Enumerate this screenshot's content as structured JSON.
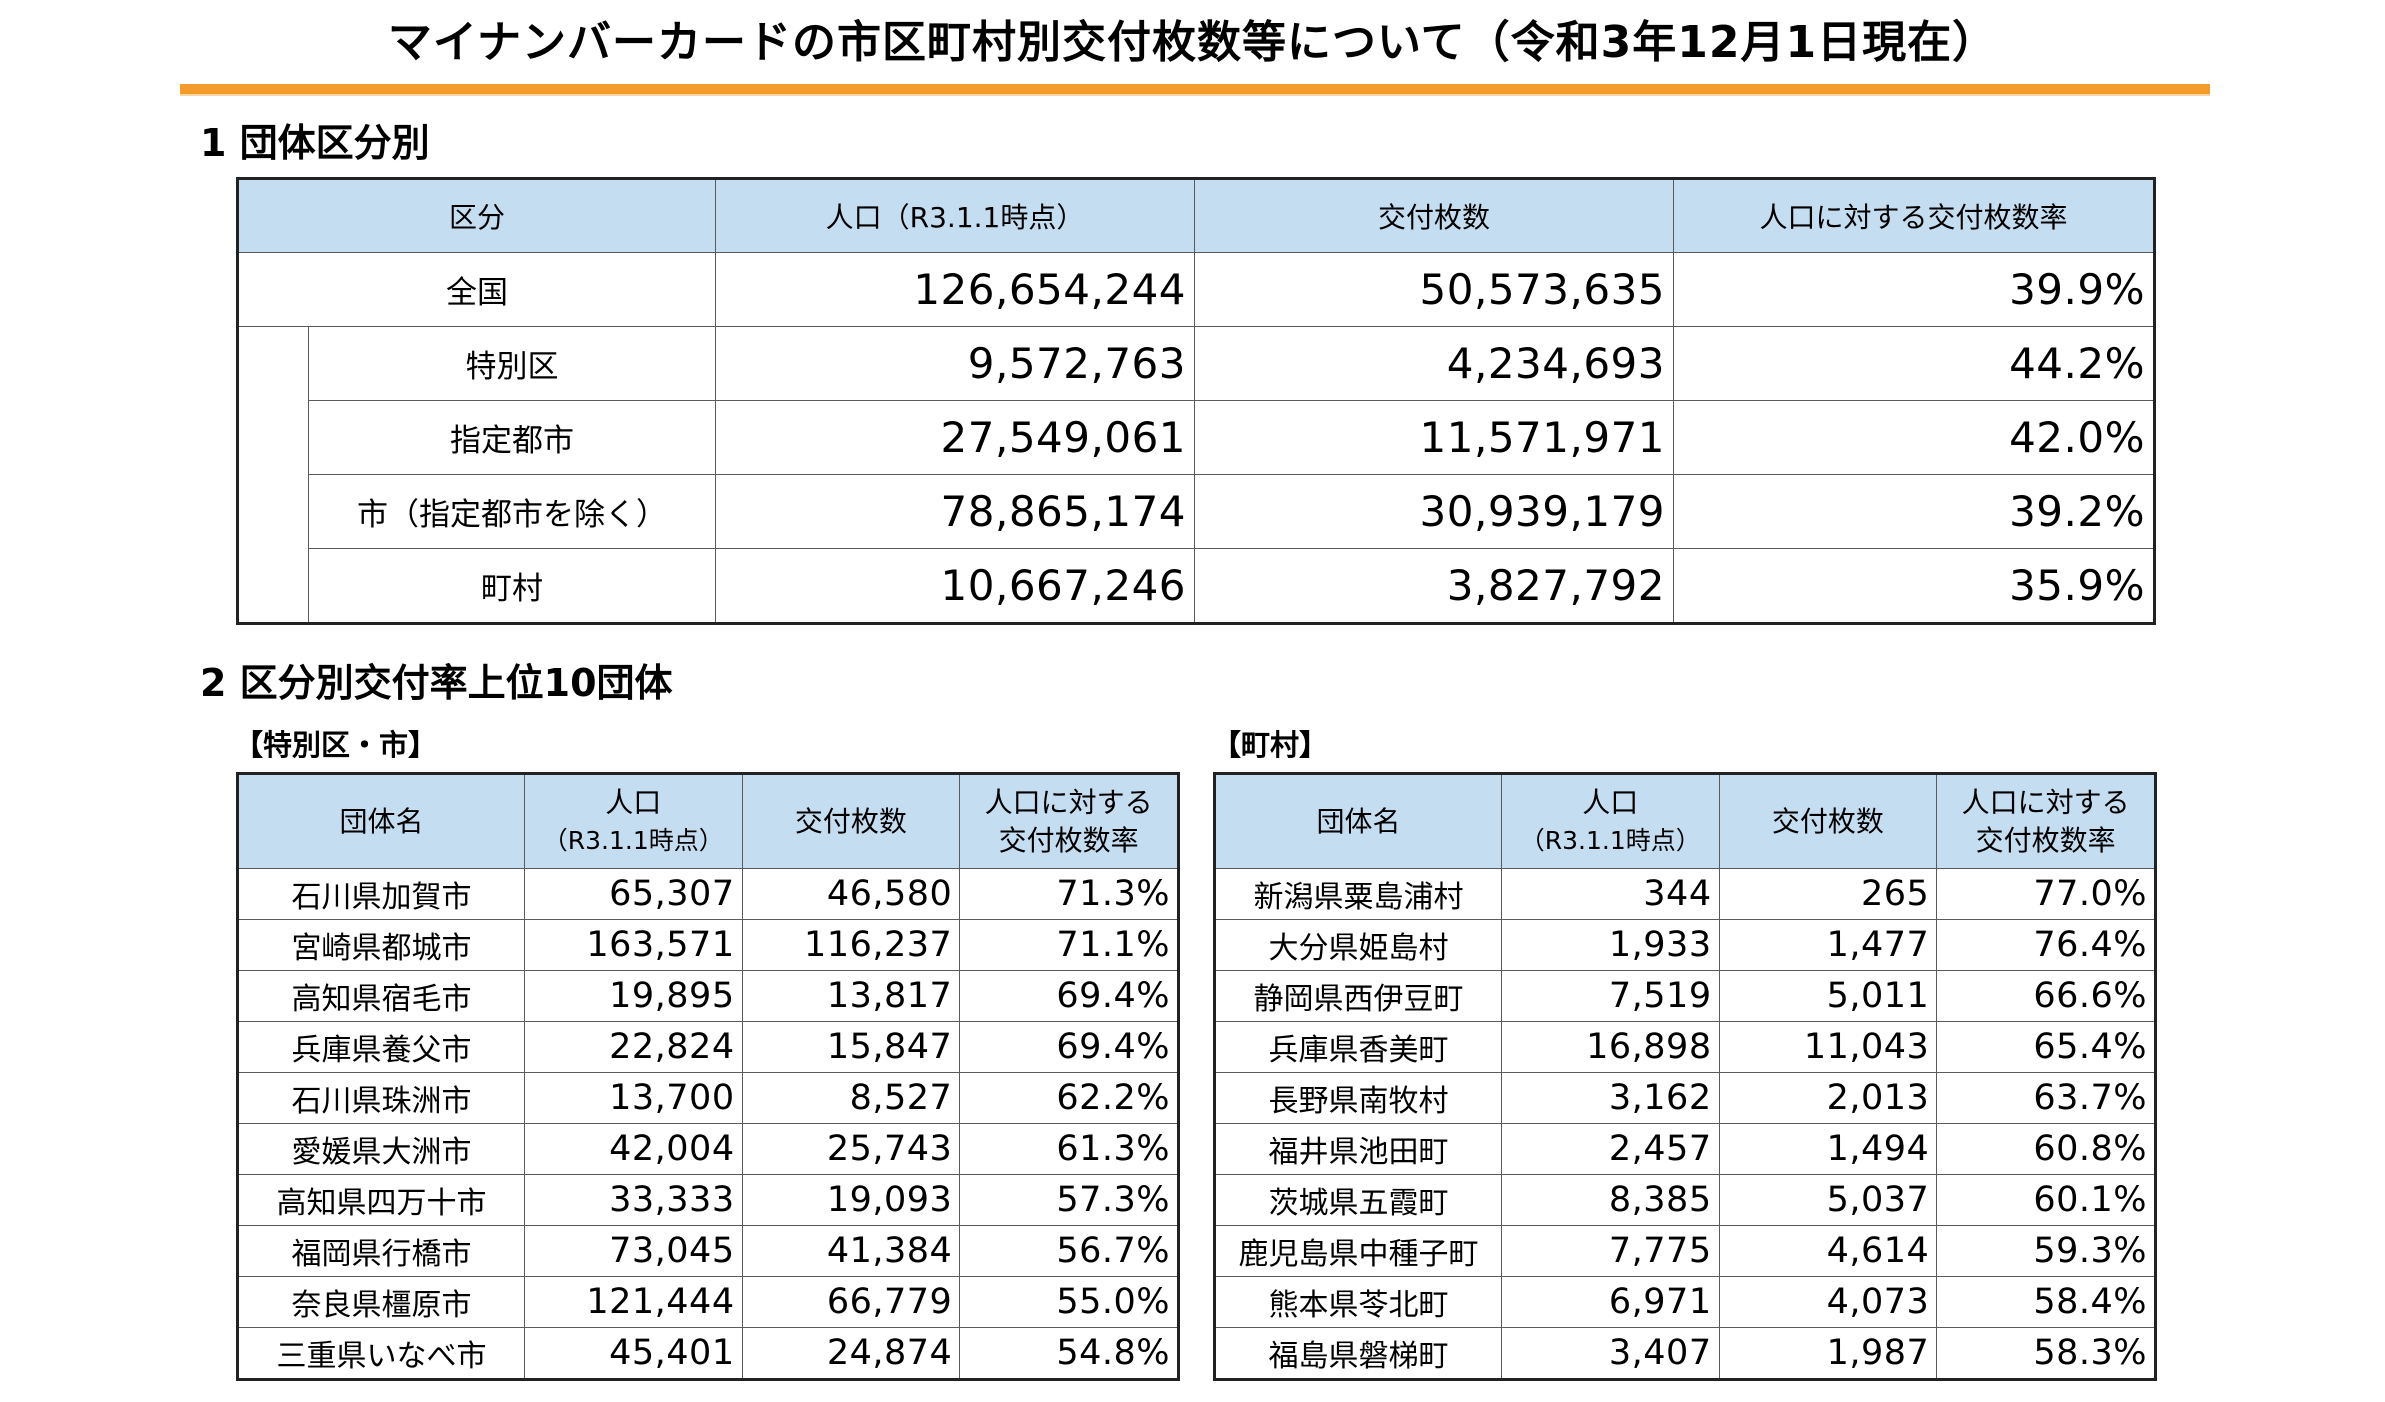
{
  "title": "マイナンバーカードの市区町村別交付枚数等について（令和3年12月1日現在）",
  "section1": {
    "heading": "1 団体区分別",
    "headers": [
      "区分",
      "人口（R3.1.1時点）",
      "交付枚数",
      "人口に対する交付枚数率"
    ],
    "rows": [
      {
        "label": "全国",
        "population": "126,654,244",
        "issued": "50,573,635",
        "rate": "39.9%"
      },
      {
        "label": "特別区",
        "population": "9,572,763",
        "issued": "4,234,693",
        "rate": "44.2%"
      },
      {
        "label": "指定都市",
        "population": "27,549,061",
        "issued": "11,571,971",
        "rate": "42.0%"
      },
      {
        "label": "市（指定都市を除く）",
        "population": "78,865,174",
        "issued": "30,939,179",
        "rate": "39.2%"
      },
      {
        "label": "町村",
        "population": "10,667,246",
        "issued": "3,827,792",
        "rate": "35.9%"
      }
    ]
  },
  "section2": {
    "heading": "2 区分別交付率上位10団体",
    "cities": {
      "subheading": "【特別区・市】",
      "headers": {
        "name": "団体名",
        "population_1": "人口",
        "population_2": "（R3.1.1時点）",
        "issued": "交付枚数",
        "rate_1": "人口に対する",
        "rate_2": "交付枚数率"
      },
      "rows": [
        {
          "name": "石川県加賀市",
          "population": "65,307",
          "issued": "46,580",
          "rate": "71.3%"
        },
        {
          "name": "宮崎県都城市",
          "population": "163,571",
          "issued": "116,237",
          "rate": "71.1%"
        },
        {
          "name": "高知県宿毛市",
          "population": "19,895",
          "issued": "13,817",
          "rate": "69.4%"
        },
        {
          "name": "兵庫県養父市",
          "population": "22,824",
          "issued": "15,847",
          "rate": "69.4%"
        },
        {
          "name": "石川県珠洲市",
          "population": "13,700",
          "issued": "8,527",
          "rate": "62.2%"
        },
        {
          "name": "愛媛県大洲市",
          "population": "42,004",
          "issued": "25,743",
          "rate": "61.3%"
        },
        {
          "name": "高知県四万十市",
          "population": "33,333",
          "issued": "19,093",
          "rate": "57.3%"
        },
        {
          "name": "福岡県行橋市",
          "population": "73,045",
          "issued": "41,384",
          "rate": "56.7%"
        },
        {
          "name": "奈良県橿原市",
          "population": "121,444",
          "issued": "66,779",
          "rate": "55.0%"
        },
        {
          "name": "三重県いなべ市",
          "population": "45,401",
          "issued": "24,874",
          "rate": "54.8%"
        }
      ]
    },
    "towns": {
      "subheading": "【町村】",
      "headers": {
        "name": "団体名",
        "population_1": "人口",
        "population_2": "（R3.1.1時点）",
        "issued": "交付枚数",
        "rate_1": "人口に対する",
        "rate_2": "交付枚数率"
      },
      "rows": [
        {
          "name": "新潟県粟島浦村",
          "population": "344",
          "issued": "265",
          "rate": "77.0%"
        },
        {
          "name": "大分県姫島村",
          "population": "1,933",
          "issued": "1,477",
          "rate": "76.4%"
        },
        {
          "name": "静岡県西伊豆町",
          "population": "7,519",
          "issued": "5,011",
          "rate": "66.6%"
        },
        {
          "name": "兵庫県香美町",
          "population": "16,898",
          "issued": "11,043",
          "rate": "65.4%"
        },
        {
          "name": "長野県南牧村",
          "population": "3,162",
          "issued": "2,013",
          "rate": "63.7%"
        },
        {
          "name": "福井県池田町",
          "population": "2,457",
          "issued": "1,494",
          "rate": "60.8%"
        },
        {
          "name": "茨城県五霞町",
          "population": "8,385",
          "issued": "5,037",
          "rate": "60.1%"
        },
        {
          "name": "鹿児島県中種子町",
          "population": "7,775",
          "issued": "4,614",
          "rate": "59.3%"
        },
        {
          "name": "熊本県苓北町",
          "population": "6,971",
          "issued": "4,073",
          "rate": "58.4%"
        },
        {
          "name": "福島県磐梯町",
          "population": "3,407",
          "issued": "1,987",
          "rate": "58.3%"
        }
      ]
    }
  },
  "colors": {
    "accent_rule": "#f39c2c",
    "header_fill": "#c5ddf0"
  }
}
